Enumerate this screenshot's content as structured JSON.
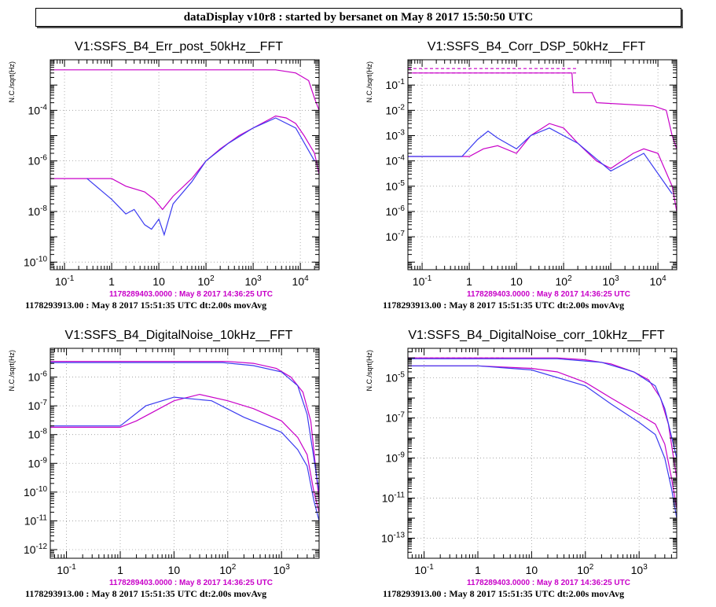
{
  "header": {
    "title": "dataDisplay v10r8 : started by bersanet on May  8 2017 15:50:50 UTC"
  },
  "colors": {
    "blue": "#3c3cf0",
    "magenta": "#c800c8",
    "grid": "#9a9a9a"
  },
  "chart_data": [
    {
      "type": "line",
      "title": "V1:SSFS_B4_Err_post_50kHz__FFT",
      "ylabel": "N.C./sqrt(Hz)",
      "xlabel": "",
      "x_scale": "log",
      "y_scale": "log",
      "xlim": [
        0.05,
        25000
      ],
      "ylim": [
        5e-11,
        0.01
      ],
      "x_ticks": [
        {
          "v": 0.1,
          "t": "10^-1"
        },
        {
          "v": 1,
          "t": "1"
        },
        {
          "v": 10,
          "t": "10"
        },
        {
          "v": 100,
          "t": "10^2"
        },
        {
          "v": 1000,
          "t": "10^3"
        },
        {
          "v": 10000,
          "t": "10^4"
        }
      ],
      "y_ticks": [
        {
          "v": 1e-10,
          "t": "10^-10"
        },
        {
          "v": 1e-08,
          "t": "10^-8"
        },
        {
          "v": 1e-06,
          "t": "10^-6"
        },
        {
          "v": 0.0001,
          "t": "10^-4"
        }
      ],
      "grid": true,
      "reference_label": "1178289403.0000 : May  8 2017 14:36:25 UTC",
      "footer": "1178293913.00 : May  8 2017 15:51:35 UTC dt:2.00s movAvg",
      "series": [
        {
          "color": "magenta",
          "style": "solid",
          "points": [
            [
              0.05,
              0.004
            ],
            [
              3000,
              0.004
            ],
            [
              8000,
              0.003
            ],
            [
              15000,
              0.0015
            ],
            [
              20000,
              0.0003
            ],
            [
              25000,
              0.0001
            ]
          ]
        },
        {
          "color": "magenta",
          "style": "solid",
          "points": [
            [
              0.05,
              2e-07
            ],
            [
              1,
              2e-07
            ],
            [
              2,
              1e-07
            ],
            [
              5,
              6e-08
            ],
            [
              8,
              3e-08
            ],
            [
              12,
              1.2e-08
            ],
            [
              20,
              4e-08
            ],
            [
              50,
              2e-07
            ],
            [
              100,
              1e-06
            ],
            [
              200,
              3e-06
            ],
            [
              500,
              1e-05
            ],
            [
              1000,
              2e-05
            ],
            [
              2000,
              4e-05
            ],
            [
              3000,
              6e-05
            ],
            [
              5000,
              5e-05
            ],
            [
              8000,
              3e-05
            ],
            [
              12000,
              1e-05
            ],
            [
              20000,
              2e-06
            ],
            [
              25000,
              3e-07
            ]
          ]
        },
        {
          "color": "blue",
          "style": "solid",
          "points": [
            [
              0.3,
              2e-07
            ],
            [
              1,
              3e-08
            ],
            [
              2,
              8e-09
            ],
            [
              3,
              1.2e-08
            ],
            [
              5,
              3e-09
            ],
            [
              7,
              2e-09
            ],
            [
              10,
              5e-09
            ],
            [
              13,
              1.2e-09
            ],
            [
              20,
              2e-08
            ],
            [
              50,
              1.5e-07
            ],
            [
              100,
              1e-06
            ],
            [
              300,
              5e-06
            ],
            [
              1000,
              2e-05
            ],
            [
              3000,
              5e-05
            ],
            [
              8000,
              2e-05
            ],
            [
              20000,
              1e-06
            ]
          ]
        }
      ]
    },
    {
      "type": "line",
      "title": "V1:SSFS_B4_Corr_DSP_50kHz__FFT",
      "ylabel": "N.C./sqrt(Hz)",
      "xlabel": "",
      "x_scale": "log",
      "y_scale": "log",
      "xlim": [
        0.05,
        25000
      ],
      "ylim": [
        5e-09,
        1
      ],
      "x_ticks": [
        {
          "v": 0.1,
          "t": "10^-1"
        },
        {
          "v": 1,
          "t": "1"
        },
        {
          "v": 10,
          "t": "10"
        },
        {
          "v": 100,
          "t": "10^2"
        },
        {
          "v": 1000,
          "t": "10^3"
        },
        {
          "v": 10000,
          "t": "10^4"
        }
      ],
      "y_ticks": [
        {
          "v": 1e-07,
          "t": "10^-7"
        },
        {
          "v": 1e-06,
          "t": "10^-6"
        },
        {
          "v": 1e-05,
          "t": "10^-5"
        },
        {
          "v": 0.0001,
          "t": "10^-4"
        },
        {
          "v": 0.001,
          "t": "10^-3"
        },
        {
          "v": 0.01,
          "t": "10^-2"
        },
        {
          "v": 0.1,
          "t": "10^-1"
        }
      ],
      "grid": true,
      "reference_label": "1178289403.0000 : May  8 2017 14:36:25 UTC",
      "footer": "1178293913.00 : May  8 2017 15:51:35 UTC dt:2.00s movAvg",
      "series": [
        {
          "color": "magenta",
          "style": "dashed",
          "points": [
            [
              0.05,
              0.45
            ],
            [
              200,
              0.45
            ]
          ]
        },
        {
          "color": "magenta",
          "style": "dashed",
          "points": [
            [
              0.05,
              0.3
            ],
            [
              200,
              0.3
            ]
          ]
        },
        {
          "color": "magenta",
          "style": "solid",
          "points": [
            [
              0.05,
              0.3
            ],
            [
              150,
              0.3
            ],
            [
              160,
              0.05
            ],
            [
              400,
              0.05
            ],
            [
              500,
              0.02
            ],
            [
              8000,
              0.015
            ],
            [
              15000,
              0.01
            ],
            [
              20000,
              0.001
            ],
            [
              25000,
              0.0003
            ]
          ]
        },
        {
          "color": "magenta",
          "style": "solid",
          "points": [
            [
              0.05,
              0.00015
            ],
            [
              1,
              0.00015
            ],
            [
              2,
              0.0003
            ],
            [
              4,
              0.0004
            ],
            [
              10,
              0.0002
            ],
            [
              20,
              0.001
            ],
            [
              50,
              0.003
            ],
            [
              100,
              0.002
            ],
            [
              200,
              0.0005
            ],
            [
              500,
              0.0001
            ],
            [
              1000,
              5e-05
            ],
            [
              3000,
              0.0002
            ],
            [
              5000,
              0.0003
            ],
            [
              10000,
              0.0002
            ],
            [
              20000,
              1e-05
            ],
            [
              25000,
              1e-06
            ]
          ]
        },
        {
          "color": "blue",
          "style": "solid",
          "points": [
            [
              0.05,
              0.00015
            ],
            [
              0.7,
              0.00015
            ],
            [
              1.5,
              0.0007
            ],
            [
              2.5,
              0.0015
            ],
            [
              4,
              0.0008
            ],
            [
              10,
              0.0003
            ],
            [
              20,
              0.001
            ],
            [
              50,
              0.002
            ],
            [
              200,
              0.0005
            ],
            [
              1000,
              4e-05
            ],
            [
              5000,
              0.0002
            ],
            [
              20000,
              5e-06
            ]
          ]
        }
      ]
    },
    {
      "type": "line",
      "title": "V1:SSFS_B4_DigitalNoise_10kHz__FFT",
      "ylabel": "N.C./sqrt(Hz)",
      "xlabel": "",
      "x_scale": "log",
      "y_scale": "log",
      "xlim": [
        0.05,
        5000
      ],
      "ylim": [
        5e-13,
        1e-05
      ],
      "x_ticks": [
        {
          "v": 0.1,
          "t": "10^-1"
        },
        {
          "v": 1,
          "t": "1"
        },
        {
          "v": 10,
          "t": "10"
        },
        {
          "v": 100,
          "t": "10^2"
        },
        {
          "v": 1000,
          "t": "10^3"
        }
      ],
      "y_ticks": [
        {
          "v": 1e-12,
          "t": "10^-12"
        },
        {
          "v": 1e-11,
          "t": "10^-11"
        },
        {
          "v": 1e-10,
          "t": "10^-10"
        },
        {
          "v": 1e-09,
          "t": "10^-9"
        },
        {
          "v": 1e-08,
          "t": "10^-8"
        },
        {
          "v": 1e-07,
          "t": "10^-7"
        },
        {
          "v": 1e-06,
          "t": "10^-6"
        }
      ],
      "grid": true,
      "reference_label": "1178289403.0000 : May  8 2017 14:36:25 UTC",
      "footer": "1178293913.00 : May  8 2017 15:51:35 UTC dt:2.00s movAvg",
      "series": [
        {
          "color": "magenta",
          "style": "solid",
          "points": [
            [
              0.05,
              3.5e-06
            ],
            [
              100,
              3.5e-06
            ],
            [
              300,
              3e-06
            ],
            [
              800,
              2e-06
            ],
            [
              1500,
              1e-06
            ],
            [
              2500,
              3e-07
            ],
            [
              3500,
              3e-08
            ],
            [
              5000,
              5e-11
            ]
          ]
        },
        {
          "color": "blue",
          "style": "solid",
          "points": [
            [
              0.05,
              3.2e-06
            ],
            [
              80,
              3.2e-06
            ],
            [
              300,
              2.5e-06
            ],
            [
              1000,
              1.5e-06
            ],
            [
              2000,
              5e-07
            ],
            [
              3000,
              5e-08
            ],
            [
              5000,
              1e-10
            ]
          ]
        },
        {
          "color": "magenta",
          "style": "solid",
          "points": [
            [
              0.05,
              1.8e-08
            ],
            [
              1,
              1.8e-08
            ],
            [
              2,
              3e-08
            ],
            [
              4,
              6e-08
            ],
            [
              10,
              1.5e-07
            ],
            [
              30,
              2.5e-07
            ],
            [
              100,
              1.5e-07
            ],
            [
              300,
              8e-08
            ],
            [
              1000,
              3e-08
            ],
            [
              2000,
              8e-09
            ],
            [
              3000,
              2e-09
            ],
            [
              4000,
              1e-10
            ],
            [
              5000,
              2e-11
            ]
          ]
        },
        {
          "color": "blue",
          "style": "solid",
          "points": [
            [
              0.05,
              2e-08
            ],
            [
              1,
              2e-08
            ],
            [
              3,
              1e-07
            ],
            [
              10,
              2e-07
            ],
            [
              50,
              1.5e-07
            ],
            [
              200,
              4e-08
            ],
            [
              1000,
              1.2e-08
            ],
            [
              2000,
              3e-09
            ],
            [
              3000,
              8e-10
            ],
            [
              4000,
              5e-11
            ],
            [
              5000,
              1e-11
            ]
          ]
        }
      ]
    },
    {
      "type": "line",
      "title": "V1:SSFS_B4_DigitalNoise_corr_10kHz__FFT",
      "ylabel": "N.C./sqrt(Hz)",
      "xlabel": "",
      "x_scale": "log",
      "y_scale": "log",
      "xlim": [
        0.05,
        5000
      ],
      "ylim": [
        1e-14,
        0.0003
      ],
      "x_ticks": [
        {
          "v": 0.1,
          "t": "10^-1"
        },
        {
          "v": 1,
          "t": "1"
        },
        {
          "v": 10,
          "t": "10"
        },
        {
          "v": 100,
          "t": "10^2"
        },
        {
          "v": 1000,
          "t": "10^3"
        }
      ],
      "y_ticks": [
        {
          "v": 1e-13,
          "t": "10^-13"
        },
        {
          "v": 1e-11,
          "t": "10^-11"
        },
        {
          "v": 1e-09,
          "t": "10^-9"
        },
        {
          "v": 1e-07,
          "t": "10^-7"
        },
        {
          "v": 1e-05,
          "t": "10^-5"
        }
      ],
      "grid": true,
      "reference_label": "1178289403.0000 : May  8 2017 14:36:25 UTC",
      "footer": "1178293913.00 : May  8 2017 15:51:35 UTC dt:2.00s movAvg",
      "series": [
        {
          "color": "magenta",
          "style": "dashed",
          "points": [
            [
              0.05,
              0.0001
            ],
            [
              3,
              0.0001
            ]
          ]
        },
        {
          "color": "magenta",
          "style": "solid",
          "points": [
            [
              0.05,
              0.0001
            ],
            [
              30,
              0.0001
            ],
            [
              100,
              8e-05
            ],
            [
              300,
              5e-05
            ],
            [
              800,
              2e-05
            ],
            [
              1500,
              8e-06
            ],
            [
              2500,
              1e-06
            ],
            [
              3500,
              5e-08
            ],
            [
              5000,
              1e-10
            ]
          ]
        },
        {
          "color": "blue",
          "style": "solid",
          "points": [
            [
              0.05,
              9e-05
            ],
            [
              30,
              9e-05
            ],
            [
              200,
              6e-05
            ],
            [
              800,
              2e-05
            ],
            [
              2000,
              4e-06
            ],
            [
              3000,
              3e-07
            ],
            [
              5000,
              1e-09
            ]
          ]
        },
        {
          "color": "magenta",
          "style": "solid",
          "points": [
            [
              0.05,
              4e-05
            ],
            [
              1,
              4e-05
            ],
            [
              10,
              3e-05
            ],
            [
              30,
              2e-05
            ],
            [
              100,
              6e-06
            ],
            [
              300,
              1e-06
            ],
            [
              1000,
              1.5e-07
            ],
            [
              2000,
              5e-08
            ],
            [
              3000,
              5e-09
            ],
            [
              4000,
              1e-10
            ],
            [
              5000,
              3e-12
            ]
          ]
        },
        {
          "color": "blue",
          "style": "solid",
          "points": [
            [
              0.05,
              4e-05
            ],
            [
              1,
              4e-05
            ],
            [
              10,
              2.5e-05
            ],
            [
              100,
              4e-06
            ],
            [
              300,
              5e-07
            ],
            [
              1000,
              6e-08
            ],
            [
              2000,
              1.5e-08
            ],
            [
              3000,
              1e-09
            ],
            [
              4000,
              3e-11
            ],
            [
              5000,
              1e-12
            ]
          ]
        }
      ]
    }
  ]
}
